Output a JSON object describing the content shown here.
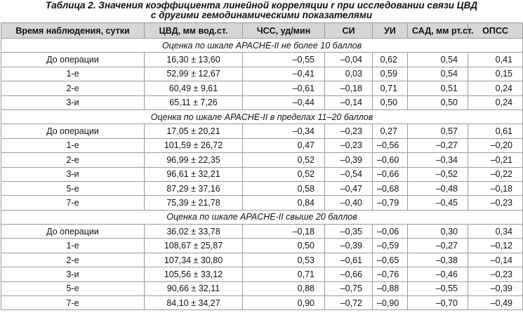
{
  "title": {
    "line1": "Таблица 2. Значения коэффициента линейной корреляции r при исследовании связи ЦВД",
    "line2": "с другими гемодинамическими показателями"
  },
  "table": {
    "header": [
      "Время наблюдения, сутки",
      "ЦВД, мм вод.ст.",
      "ЧСС, уд/мин",
      "СИ",
      "УИ",
      "САД, мм рт.ст.",
      "ОПСС"
    ],
    "sections": [
      {
        "label": "Оценка по шкале APACHE-II не более 10 баллов",
        "rows": [
          [
            "До операции",
            "16,30 ± 13,60",
            "–0,55",
            "–0,04",
            "0,62",
            "0,54",
            "0,41"
          ],
          [
            "1-е",
            "52,99 ± 12,67",
            "–0,41",
            "0,03",
            "0,59",
            "0,54",
            "0,15"
          ],
          [
            "2-е",
            "60,49 ± 9,61",
            "–0,61",
            "–0,18",
            "0,71",
            "0,51",
            "0,24"
          ],
          [
            "3-и",
            "65,11 ± 7,26",
            "–0,44",
            "–0,14",
            "0,50",
            "0,50",
            "0,24"
          ]
        ]
      },
      {
        "label": "Оценка по шкале APACHE-II в пределах 11–20 баллов",
        "rows": [
          [
            "До операции",
            "17,05 ± 20,21",
            "–0,34",
            "–0,23",
            "0,27",
            "0,57",
            "0,61"
          ],
          [
            "1-е",
            "101,59 ± 26,72",
            "0,47",
            "–0,23",
            "–0,56",
            "–0,27",
            "–0,20"
          ],
          [
            "2-е",
            "96,99 ± 22,35",
            "0,52",
            "–0,39",
            "–0,60",
            "–0,34",
            "–0,21"
          ],
          [
            "3-и",
            "96,61 ± 32,21",
            "0,52",
            "–0,54",
            "–0,66",
            "–0,52",
            "–0,22"
          ],
          [
            "5-е",
            "87,29 ± 37,16",
            "0,58",
            "–0,47",
            "–0,68",
            "–0,48",
            "–0,18"
          ],
          [
            "7-е",
            "75,39 ± 21,78",
            "0,84",
            "–0,40",
            "–0,79",
            "–0,45",
            "–0,23"
          ]
        ]
      },
      {
        "label": "Оценка по шкале APACHE-II свыше 20 баллов",
        "rows": [
          [
            "До операции",
            "36,02 ± 33,78",
            "–0,18",
            "–0,35",
            "–0,06",
            "0,30",
            "0,34"
          ],
          [
            "1-е",
            "108,67 ± 25,87",
            "0,50",
            "–0,39",
            "–0,59",
            "–0,27",
            "–0,12"
          ],
          [
            "2-е",
            "107,34 ± 30,80",
            "0,53",
            "–0,61",
            "–0,65",
            "–0,38",
            "–0,14"
          ],
          [
            "3-и",
            "105,56 ± 33,12",
            "0,71",
            "–0,66",
            "–0,76",
            "–0,46",
            "–0,23"
          ],
          [
            "5-е",
            "90,66 ± 32,11",
            "0,88",
            "–0,75",
            "–0,88",
            "–0,55",
            "–0,39"
          ],
          [
            "7-е",
            "84,10 ± 34,27",
            "0,90",
            "–0,72",
            "–0,90",
            "–0,70",
            "–0,49"
          ]
        ]
      }
    ]
  }
}
